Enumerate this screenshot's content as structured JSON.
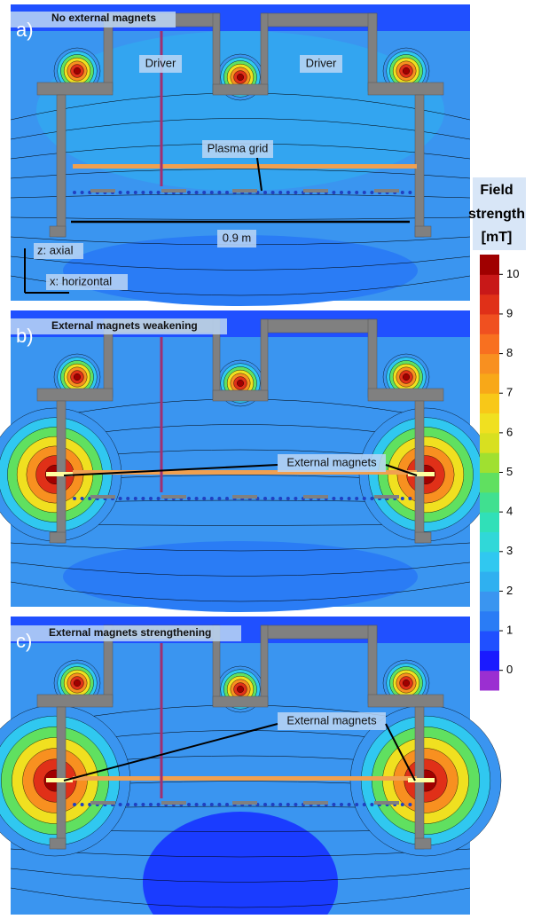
{
  "panels": [
    {
      "label": "a)",
      "title": "No external magnets",
      "annotations": [
        "Driver",
        "Driver",
        "Plasma grid",
        "0.9 m",
        "z: axial",
        "x: horizontal"
      ]
    },
    {
      "label": "b)",
      "title": "External magnets weakening",
      "annotations": [
        "External magnets"
      ]
    },
    {
      "label": "c)",
      "title": "External magnets strengthening",
      "annotations": [
        "External magnets"
      ]
    }
  ],
  "colorbar": {
    "title": [
      "Field",
      "strength",
      "[mT]"
    ],
    "lim": [
      -0.5,
      10.5
    ],
    "ticks": [
      0,
      1,
      2,
      3,
      4,
      5,
      6,
      7,
      8,
      9,
      10
    ],
    "colors": [
      "#9b2fd1",
      "#1a1aff",
      "#2050ff",
      "#2a7cf5",
      "#3a95f0",
      "#2fb0f0",
      "#30c8f0",
      "#30d8d8",
      "#30e0b8",
      "#40e090",
      "#60e060",
      "#a0e030",
      "#d8e020",
      "#f0e020",
      "#f8c818",
      "#f8a818",
      "#f89020",
      "#f87020",
      "#f05020",
      "#e03018",
      "#c81818",
      "#a00000"
    ]
  }
}
